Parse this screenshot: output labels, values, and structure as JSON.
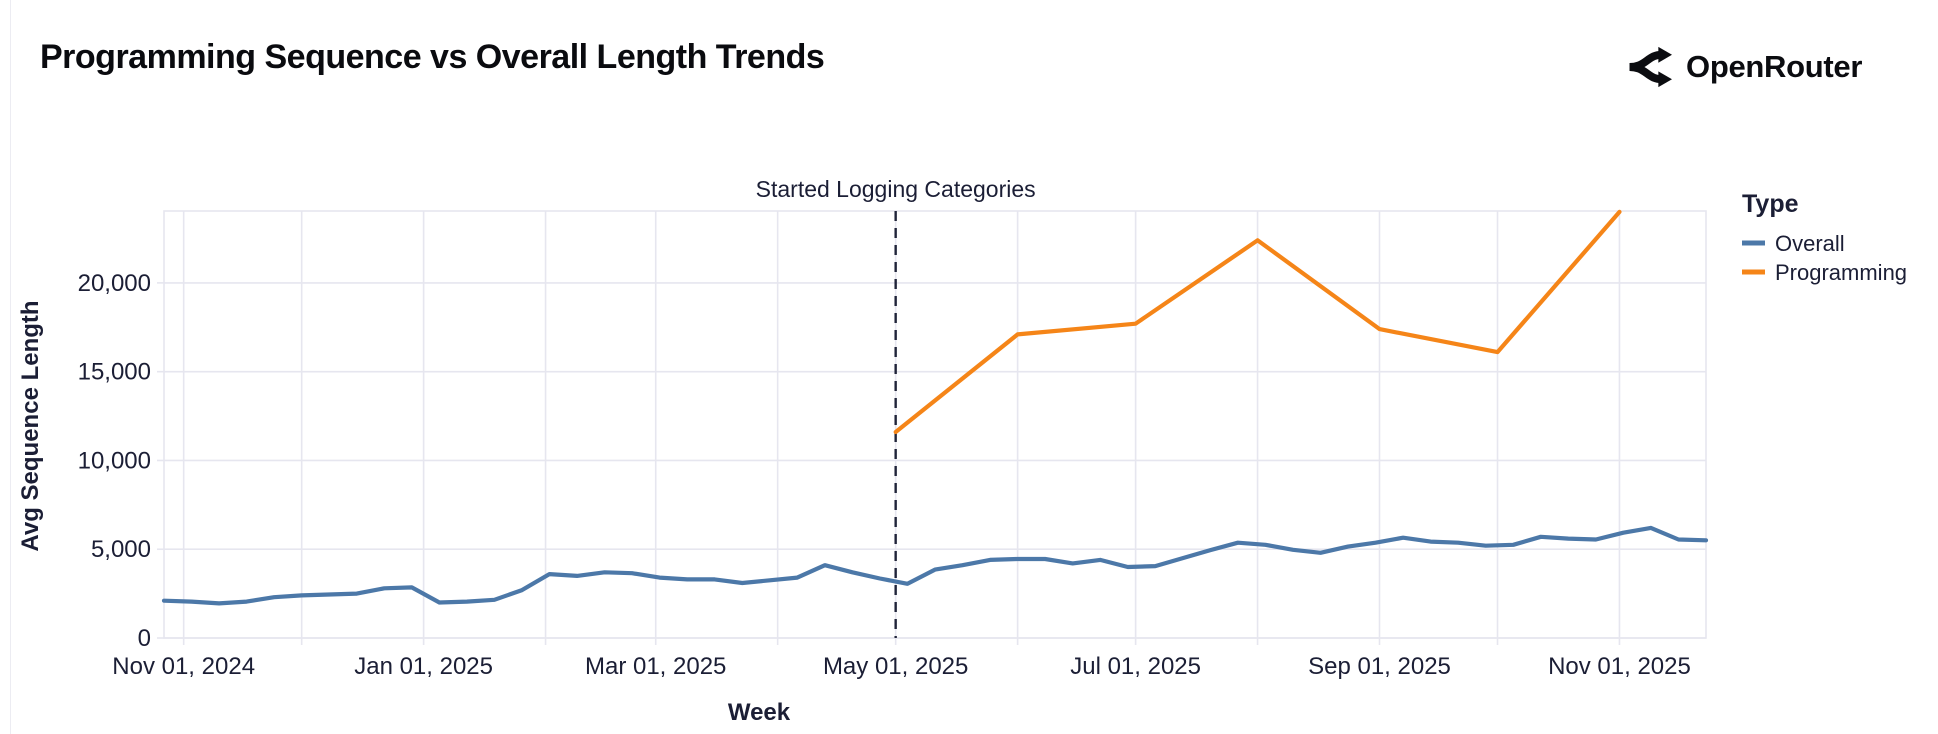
{
  "header": {
    "title": "Programming Sequence vs Overall Length Trends",
    "logo_text": "OpenRouter",
    "logo_icon": "openrouter-fork-icon"
  },
  "colors": {
    "overall_line": "#4c78a8",
    "programming_line": "#f58518",
    "grid": "#e6e6ef",
    "axis_text": "#1b1e35",
    "annotation_rule": "#20243a",
    "title_text": "#0a0b0f"
  },
  "chart_data": {
    "type": "line",
    "title": "Programming Sequence vs Overall Length Trends",
    "xlabel": "Week",
    "ylabel": "Avg Sequence Length",
    "grid": true,
    "x_domain": [
      "2024-10-27",
      "2025-11-23"
    ],
    "ylim": [
      0,
      24050
    ],
    "y_ticks": [
      {
        "value": 0,
        "label": "0"
      },
      {
        "value": 5000,
        "label": "5,000"
      },
      {
        "value": 10000,
        "label": "10,000"
      },
      {
        "value": 15000,
        "label": "15,000"
      },
      {
        "value": 20000,
        "label": "20,000"
      }
    ],
    "x_ticks": [
      {
        "date": "2024-11-01",
        "label": "Nov 01, 2024"
      },
      {
        "date": "2025-01-01",
        "label": "Jan 01, 2025"
      },
      {
        "date": "2025-03-01",
        "label": "Mar 01, 2025"
      },
      {
        "date": "2025-05-01",
        "label": "May 01, 2025"
      },
      {
        "date": "2025-07-01",
        "label": "Jul 01, 2025"
      },
      {
        "date": "2025-09-01",
        "label": "Sep 01, 2025"
      },
      {
        "date": "2025-11-01",
        "label": "Nov 01, 2025"
      }
    ],
    "month_gridlines": [
      "2024-11-01",
      "2024-12-01",
      "2025-01-01",
      "2025-02-01",
      "2025-03-01",
      "2025-04-01",
      "2025-05-01",
      "2025-06-01",
      "2025-07-01",
      "2025-08-01",
      "2025-09-01",
      "2025-10-01",
      "2025-11-01"
    ],
    "annotation": {
      "label": "Started Logging Categories",
      "date": "2025-05-01"
    },
    "legend": {
      "title": "Type",
      "position": "right",
      "entries": [
        {
          "label": "Overall",
          "color": "#4c78a8"
        },
        {
          "label": "Programming",
          "color": "#f58518"
        }
      ]
    },
    "series": [
      {
        "name": "Overall",
        "color": "#4c78a8",
        "start": "2024-10-27",
        "interval_days": 7,
        "values": [
          2100,
          2050,
          1950,
          2050,
          2300,
          2400,
          2450,
          2500,
          2800,
          2850,
          2000,
          2050,
          2150,
          2700,
          3600,
          3500,
          3700,
          3650,
          3400,
          3300,
          3300,
          3100,
          3250,
          3400,
          4100,
          3700,
          3350,
          3050,
          3850,
          4100,
          4400,
          4450,
          4450,
          4200,
          4400,
          4000,
          4050,
          4500,
          4950,
          5370,
          5250,
          4970,
          4800,
          5150,
          5370,
          5650,
          5430,
          5370,
          5200,
          5250,
          5700,
          5600,
          5550,
          5930,
          6200,
          5550,
          5500
        ]
      },
      {
        "name": "Programming",
        "color": "#f58518",
        "points": [
          {
            "date": "2025-05-01",
            "value": 11600
          },
          {
            "date": "2025-06-01",
            "value": 17100
          },
          {
            "date": "2025-07-01",
            "value": 17700
          },
          {
            "date": "2025-08-01",
            "value": 22400
          },
          {
            "date": "2025-09-01",
            "value": 17400
          },
          {
            "date": "2025-10-01",
            "value": 16100
          },
          {
            "date": "2025-11-01",
            "value": 24000
          }
        ]
      }
    ]
  }
}
